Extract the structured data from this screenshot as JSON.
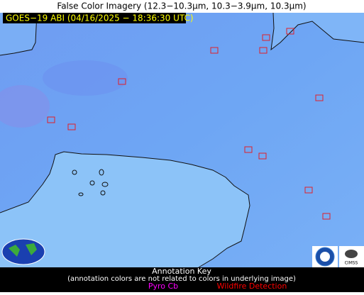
{
  "title": "False Color Imagery (12.3−10.3µm, 10.3−3.9µm, 10.3µm)",
  "timestamp": "GOES−19 ABI (04/16/2025 − 18:36:30 UTC)",
  "key": {
    "title": "Annotation Key",
    "note": "(annotation colors are not related to colors in underlying image)",
    "items": [
      {
        "label": "Pyro Cb",
        "color": "#ff00ff"
      },
      {
        "label": "Wildfire Detection",
        "color": "#ff0000"
      }
    ]
  },
  "logos": {
    "cimss": "CIMSS"
  }
}
